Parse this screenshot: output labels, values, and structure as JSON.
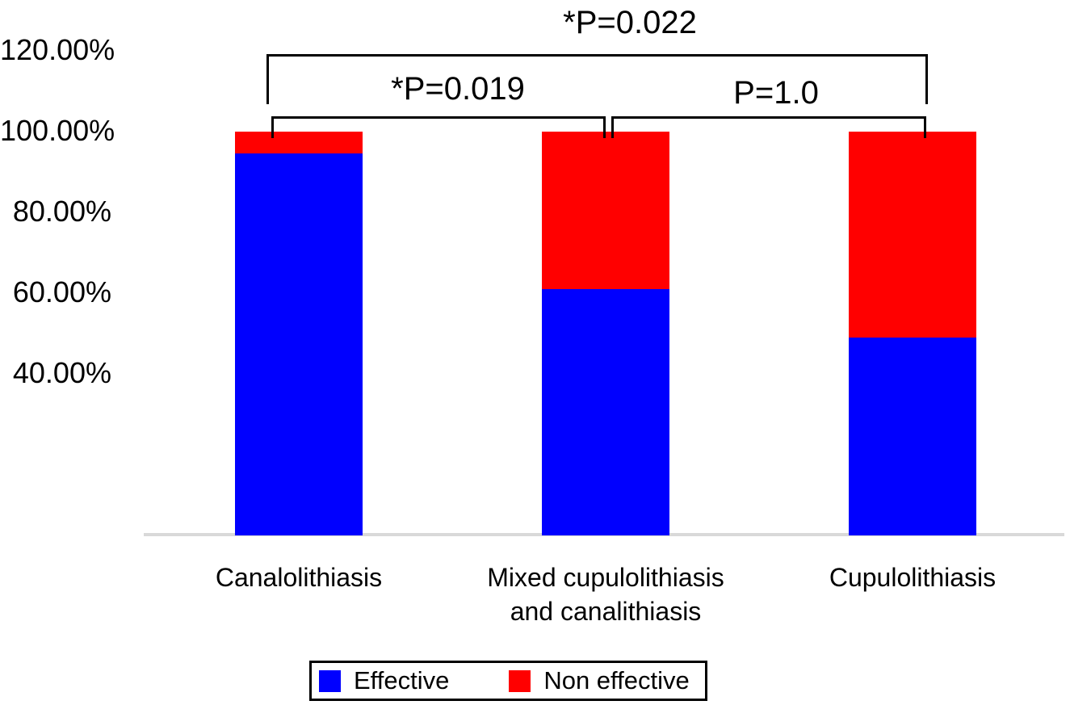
{
  "figure": {
    "background": "#ffffff",
    "baseline_color": "#d9d9d9"
  },
  "chart_data": {
    "type": "bar",
    "stacked": true,
    "title": "",
    "xlabel": "",
    "ylabel": "",
    "categories": [
      "Canalolithiasis",
      "Mixed cupulolithiasis\nand canalithiasis",
      "Cupulolithiasis"
    ],
    "series": [
      {
        "name": "Effective",
        "color": "#0000ff",
        "values": [
          94.6,
          61.0,
          49.0
        ]
      },
      {
        "name": "Non effective",
        "color": "#ff0000",
        "values": [
          5.4,
          39.0,
          51.0
        ]
      }
    ],
    "bar_totals_percent": [
      100,
      100,
      100
    ],
    "y_ticks": [
      {
        "label": "120.00%",
        "value": 120
      },
      {
        "label": "100.00%",
        "value": 100
      },
      {
        "label": "80.00%",
        "value": 80
      },
      {
        "label": "60.00%",
        "value": 60
      },
      {
        "label": "40.00%",
        "value": 40
      }
    ],
    "ylim": [
      0,
      125
    ],
    "grid": false,
    "legend_position": "bottom",
    "annotations": [
      {
        "label": "*P=0.022",
        "between": [
          "Canalolithiasis",
          "Cupulolithiasis"
        ]
      },
      {
        "label": "*P=0.019",
        "between": [
          "Canalolithiasis",
          "Mixed cupulolithiasis and canalithiasis"
        ]
      },
      {
        "label": "P=1.0",
        "between": [
          "Mixed cupulolithiasis and canalithiasis",
          "Cupulolithiasis"
        ]
      }
    ]
  },
  "legend": {
    "items": [
      {
        "label": "Effective",
        "color": "#0000ff"
      },
      {
        "label": "Non effective",
        "color": "#ff0000"
      }
    ]
  }
}
